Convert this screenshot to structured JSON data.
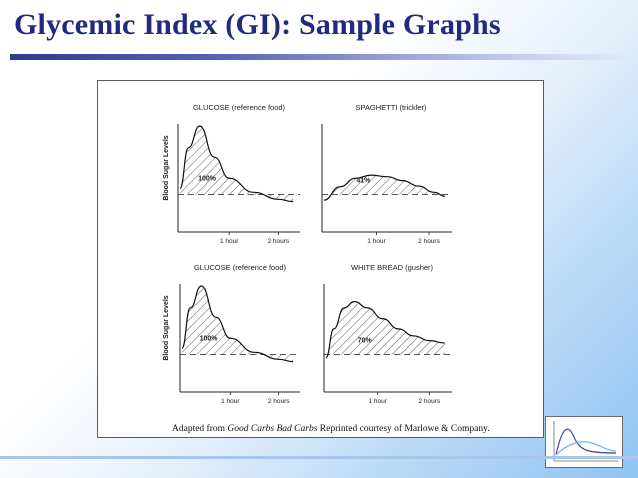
{
  "title": "Glycemic Index (GI): Sample Graphs",
  "caption": {
    "prefix": "Adapted from ",
    "source": "Good Carbs Bad Carbs",
    "suffix": "  Reprinted courtesy of Marlowe & Company."
  },
  "chart_data": [
    {
      "type": "area",
      "title": "GLUCOSE (reference food)",
      "ylabel": "Blood Sugar Levels",
      "x_ticks": [
        "1 hour",
        "2 hours"
      ],
      "value_label": "100%",
      "x": [
        0,
        0.17,
        0.4,
        0.7,
        1.0,
        1.5,
        2.0,
        2.3
      ],
      "y": [
        0.2,
        0.72,
        1.0,
        0.6,
        0.33,
        0.15,
        0.06,
        0.03
      ]
    },
    {
      "type": "area",
      "title": "SPAGHETTI (trickler)",
      "ylabel": "",
      "x_ticks": [
        "1 hour",
        "2 hours"
      ],
      "value_label": "41%",
      "x": [
        0,
        0.3,
        0.6,
        0.9,
        1.2,
        1.5,
        1.8,
        2.1,
        2.3
      ],
      "y": [
        0.05,
        0.22,
        0.33,
        0.37,
        0.35,
        0.3,
        0.23,
        0.15,
        0.1
      ]
    },
    {
      "type": "area",
      "title": "GLUCOSE (reference food)",
      "ylabel": "Blood Sugar Levels",
      "x_ticks": [
        "1 hour",
        "2 hours"
      ],
      "value_label": "100%",
      "x": [
        0,
        0.17,
        0.4,
        0.7,
        1.0,
        1.5,
        2.0,
        2.3
      ],
      "y": [
        0.2,
        0.72,
        1.0,
        0.6,
        0.33,
        0.15,
        0.06,
        0.03
      ]
    },
    {
      "type": "area",
      "title": "WHITE BREAD (gusher)",
      "ylabel": "",
      "x_ticks": [
        "1 hour",
        "2 hours"
      ],
      "value_label": "70%",
      "x": [
        0,
        0.15,
        0.35,
        0.55,
        0.8,
        1.1,
        1.4,
        1.7,
        2.0,
        2.3
      ],
      "y": [
        0.08,
        0.45,
        0.72,
        0.8,
        0.72,
        0.58,
        0.45,
        0.36,
        0.3,
        0.27
      ]
    }
  ]
}
